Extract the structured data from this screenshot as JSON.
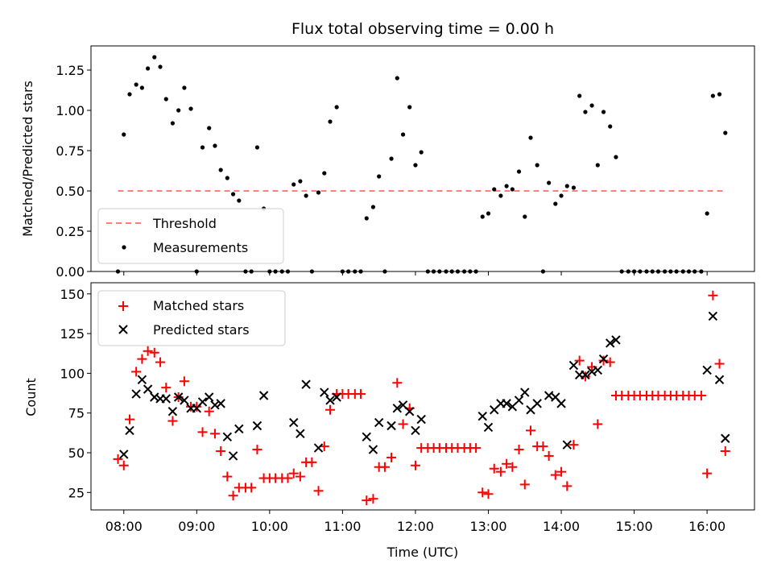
{
  "chart_data": [
    {
      "type": "scatter",
      "title": "Flux total observing time = 0.00 h",
      "xlabel": "",
      "ylabel": "Matched/Predicted stars",
      "ylim": [
        0,
        1.4
      ],
      "yticks": [
        "0.00",
        "0.25",
        "0.50",
        "0.75",
        "1.00",
        "1.25"
      ],
      "xlim": [
        7.55,
        16.65
      ],
      "threshold": {
        "name": "Threshold",
        "value": 0.5,
        "x_range": [
          7.92,
          16.25
        ],
        "color": "#ff7f7f"
      },
      "series": [
        {
          "name": "Measurements",
          "color": "#000000",
          "points": [
            [
              7.92,
              0.0
            ],
            [
              8.0,
              0.85
            ],
            [
              8.08,
              1.1
            ],
            [
              8.17,
              1.16
            ],
            [
              8.25,
              1.14
            ],
            [
              8.33,
              1.26
            ],
            [
              8.42,
              1.33
            ],
            [
              8.5,
              1.27
            ],
            [
              8.58,
              1.07
            ],
            [
              8.67,
              0.92
            ],
            [
              8.75,
              1.0
            ],
            [
              8.83,
              1.14
            ],
            [
              8.92,
              1.01
            ],
            [
              9.0,
              0.0
            ],
            [
              9.08,
              0.77
            ],
            [
              9.17,
              0.89
            ],
            [
              9.25,
              0.78
            ],
            [
              9.33,
              0.63
            ],
            [
              9.42,
              0.58
            ],
            [
              9.5,
              0.48
            ],
            [
              9.58,
              0.44
            ],
            [
              9.67,
              0.0
            ],
            [
              9.75,
              0.0
            ],
            [
              9.83,
              0.77
            ],
            [
              9.92,
              0.39
            ],
            [
              10.0,
              0.0
            ],
            [
              10.08,
              0.0
            ],
            [
              10.17,
              0.0
            ],
            [
              10.25,
              0.0
            ],
            [
              10.33,
              0.54
            ],
            [
              10.42,
              0.56
            ],
            [
              10.5,
              0.47
            ],
            [
              10.58,
              0.0
            ],
            [
              10.67,
              0.49
            ],
            [
              10.75,
              0.61
            ],
            [
              10.83,
              0.93
            ],
            [
              10.92,
              1.02
            ],
            [
              11.0,
              0.0
            ],
            [
              11.08,
              0.0
            ],
            [
              11.17,
              0.0
            ],
            [
              11.25,
              0.0
            ],
            [
              11.33,
              0.33
            ],
            [
              11.42,
              0.4
            ],
            [
              11.5,
              0.59
            ],
            [
              11.58,
              0.0
            ],
            [
              11.67,
              0.7
            ],
            [
              11.75,
              1.2
            ],
            [
              11.83,
              0.85
            ],
            [
              11.92,
              1.02
            ],
            [
              12.0,
              0.66
            ],
            [
              12.08,
              0.74
            ],
            [
              12.17,
              0.0
            ],
            [
              12.25,
              0.0
            ],
            [
              12.33,
              0.0
            ],
            [
              12.42,
              0.0
            ],
            [
              12.5,
              0.0
            ],
            [
              12.58,
              0.0
            ],
            [
              12.67,
              0.0
            ],
            [
              12.75,
              0.0
            ],
            [
              12.83,
              0.0
            ],
            [
              12.92,
              0.34
            ],
            [
              13.0,
              0.36
            ],
            [
              13.08,
              0.51
            ],
            [
              13.17,
              0.47
            ],
            [
              13.25,
              0.53
            ],
            [
              13.33,
              0.51
            ],
            [
              13.42,
              0.62
            ],
            [
              13.5,
              0.34
            ],
            [
              13.58,
              0.83
            ],
            [
              13.67,
              0.66
            ],
            [
              13.75,
              0.0
            ],
            [
              13.83,
              0.55
            ],
            [
              13.92,
              0.42
            ],
            [
              14.0,
              0.47
            ],
            [
              14.08,
              0.53
            ],
            [
              14.17,
              0.52
            ],
            [
              14.25,
              1.09
            ],
            [
              14.33,
              0.99
            ],
            [
              14.42,
              1.03
            ],
            [
              14.5,
              0.66
            ],
            [
              14.58,
              0.99
            ],
            [
              14.67,
              0.9
            ],
            [
              14.75,
              0.71
            ],
            [
              14.83,
              0.0
            ],
            [
              14.92,
              0.0
            ],
            [
              15.0,
              0.0
            ],
            [
              15.08,
              0.0
            ],
            [
              15.17,
              0.0
            ],
            [
              15.25,
              0.0
            ],
            [
              15.33,
              0.0
            ],
            [
              15.42,
              0.0
            ],
            [
              15.5,
              0.0
            ],
            [
              15.58,
              0.0
            ],
            [
              15.67,
              0.0
            ],
            [
              15.75,
              0.0
            ],
            [
              15.83,
              0.0
            ],
            [
              15.92,
              0.0
            ],
            [
              16.0,
              0.36
            ],
            [
              16.08,
              1.09
            ],
            [
              16.17,
              1.1
            ],
            [
              16.25,
              0.86
            ]
          ]
        }
      ],
      "legend": {
        "placement": "lower-left",
        "entries": [
          "Threshold",
          "Measurements"
        ]
      }
    },
    {
      "type": "scatter",
      "title": "",
      "xlabel": "Time (UTC)",
      "ylabel": "Count",
      "ylim": [
        14,
        157
      ],
      "yticks": [
        "25",
        "50",
        "75",
        "100",
        "125",
        "150"
      ],
      "xlim": [
        7.55,
        16.65
      ],
      "xticks": [
        "08:00",
        "09:00",
        "10:00",
        "11:00",
        "12:00",
        "13:00",
        "14:00",
        "15:00",
        "16:00"
      ],
      "series": [
        {
          "name": "Matched stars",
          "marker": "plus",
          "color": "#ff0000",
          "points": [
            [
              7.92,
              46
            ],
            [
              8.0,
              42
            ],
            [
              8.08,
              71
            ],
            [
              8.17,
              101
            ],
            [
              8.25,
              109
            ],
            [
              8.33,
              114
            ],
            [
              8.42,
              113
            ],
            [
              8.5,
              107
            ],
            [
              8.58,
              91
            ],
            [
              8.67,
              70
            ],
            [
              8.75,
              85
            ],
            [
              8.83,
              95
            ],
            [
              8.92,
              79
            ],
            [
              9.0,
              79
            ],
            [
              9.08,
              63
            ],
            [
              9.17,
              76
            ],
            [
              9.25,
              62
            ],
            [
              9.33,
              51
            ],
            [
              9.42,
              35
            ],
            [
              9.5,
              23
            ],
            [
              9.58,
              28
            ],
            [
              9.67,
              28
            ],
            [
              9.75,
              28
            ],
            [
              9.83,
              52
            ],
            [
              9.92,
              34
            ],
            [
              10.0,
              34
            ],
            [
              10.08,
              34
            ],
            [
              10.17,
              34
            ],
            [
              10.25,
              34
            ],
            [
              10.33,
              37
            ],
            [
              10.42,
              35
            ],
            [
              10.5,
              44
            ],
            [
              10.58,
              44
            ],
            [
              10.67,
              26
            ],
            [
              10.75,
              54
            ],
            [
              10.83,
              77
            ],
            [
              10.92,
              87
            ],
            [
              11.0,
              87
            ],
            [
              11.08,
              87
            ],
            [
              11.17,
              87
            ],
            [
              11.25,
              87
            ],
            [
              11.33,
              20
            ],
            [
              11.42,
              21
            ],
            [
              11.5,
              41
            ],
            [
              11.58,
              41
            ],
            [
              11.67,
              47
            ],
            [
              11.75,
              94
            ],
            [
              11.83,
              68
            ],
            [
              11.92,
              78
            ],
            [
              12.0,
              42
            ],
            [
              12.08,
              53
            ],
            [
              12.17,
              53
            ],
            [
              12.25,
              53
            ],
            [
              12.33,
              53
            ],
            [
              12.42,
              53
            ],
            [
              12.5,
              53
            ],
            [
              12.58,
              53
            ],
            [
              12.67,
              53
            ],
            [
              12.75,
              53
            ],
            [
              12.83,
              53
            ],
            [
              12.92,
              25
            ],
            [
              13.0,
              24
            ],
            [
              13.08,
              40
            ],
            [
              13.17,
              38
            ],
            [
              13.25,
              43
            ],
            [
              13.33,
              41
            ],
            [
              13.42,
              52
            ],
            [
              13.5,
              30
            ],
            [
              13.58,
              64
            ],
            [
              13.67,
              54
            ],
            [
              13.75,
              54
            ],
            [
              13.83,
              48
            ],
            [
              13.92,
              36
            ],
            [
              14.0,
              38
            ],
            [
              14.08,
              29
            ],
            [
              14.17,
              55
            ],
            [
              14.25,
              108
            ],
            [
              14.33,
              98
            ],
            [
              14.42,
              104
            ],
            [
              14.5,
              68
            ],
            [
              14.58,
              108
            ],
            [
              14.67,
              107
            ],
            [
              14.75,
              86
            ],
            [
              14.83,
              86
            ],
            [
              14.92,
              86
            ],
            [
              15.0,
              86
            ],
            [
              15.08,
              86
            ],
            [
              15.17,
              86
            ],
            [
              15.25,
              86
            ],
            [
              15.33,
              86
            ],
            [
              15.42,
              86
            ],
            [
              15.5,
              86
            ],
            [
              15.58,
              86
            ],
            [
              15.67,
              86
            ],
            [
              15.75,
              86
            ],
            [
              15.83,
              86
            ],
            [
              15.92,
              86
            ],
            [
              16.0,
              37
            ],
            [
              16.08,
              149
            ],
            [
              16.17,
              106
            ],
            [
              16.25,
              51
            ]
          ]
        },
        {
          "name": "Predicted stars",
          "marker": "x",
          "color": "#000000",
          "points": [
            [
              8.0,
              49
            ],
            [
              8.08,
              64
            ],
            [
              8.17,
              87
            ],
            [
              8.25,
              96
            ],
            [
              8.33,
              90
            ],
            [
              8.42,
              85
            ],
            [
              8.5,
              84
            ],
            [
              8.58,
              84
            ],
            [
              8.67,
              76
            ],
            [
              8.75,
              85
            ],
            [
              8.83,
              83
            ],
            [
              8.92,
              78
            ],
            [
              9.0,
              78
            ],
            [
              9.08,
              82
            ],
            [
              9.17,
              85
            ],
            [
              9.25,
              80
            ],
            [
              9.33,
              81
            ],
            [
              9.42,
              60
            ],
            [
              9.5,
              48
            ],
            [
              9.58,
              65
            ],
            [
              9.83,
              67
            ],
            [
              9.92,
              86
            ],
            [
              10.33,
              69
            ],
            [
              10.42,
              62
            ],
            [
              10.5,
              93
            ],
            [
              10.67,
              53
            ],
            [
              10.75,
              88
            ],
            [
              10.83,
              83
            ],
            [
              10.92,
              85
            ],
            [
              11.33,
              60
            ],
            [
              11.42,
              52
            ],
            [
              11.5,
              69
            ],
            [
              11.67,
              67
            ],
            [
              11.75,
              78
            ],
            [
              11.83,
              80
            ],
            [
              11.92,
              76
            ],
            [
              12.0,
              64
            ],
            [
              12.08,
              71
            ],
            [
              12.92,
              73
            ],
            [
              13.0,
              66
            ],
            [
              13.08,
              77
            ],
            [
              13.17,
              81
            ],
            [
              13.25,
              81
            ],
            [
              13.33,
              79
            ],
            [
              13.42,
              83
            ],
            [
              13.5,
              88
            ],
            [
              13.58,
              77
            ],
            [
              13.67,
              81
            ],
            [
              13.83,
              86
            ],
            [
              13.92,
              85
            ],
            [
              14.0,
              81
            ],
            [
              14.08,
              55
            ],
            [
              14.17,
              105
            ],
            [
              14.25,
              99
            ],
            [
              14.33,
              99
            ],
            [
              14.42,
              101
            ],
            [
              14.5,
              102
            ],
            [
              14.58,
              109
            ],
            [
              14.67,
              119
            ],
            [
              14.75,
              121
            ],
            [
              16.0,
              102
            ],
            [
              16.08,
              136
            ],
            [
              16.17,
              96
            ],
            [
              16.25,
              59
            ]
          ]
        }
      ],
      "legend": {
        "placement": "upper-left",
        "entries": [
          "Matched stars",
          "Predicted stars"
        ]
      }
    }
  ]
}
